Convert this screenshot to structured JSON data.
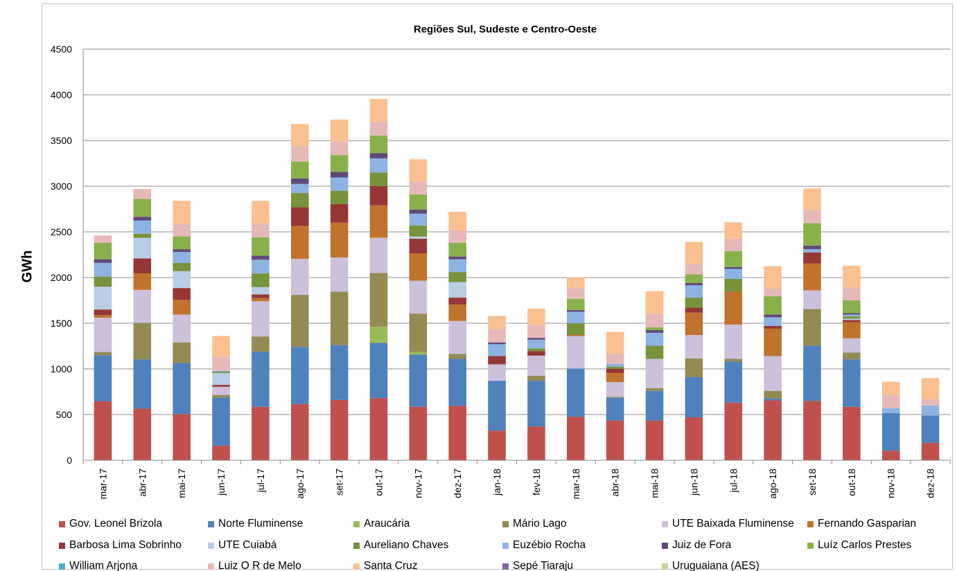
{
  "chart_data": {
    "type": "bar",
    "stacked": true,
    "title": "Regiões Sul, Sudeste e Centro-Oeste",
    "xlabel": "",
    "ylabel": "GWh",
    "ylim": [
      0,
      4500
    ],
    "yticks": [
      "0",
      "500",
      "1000",
      "1500",
      "2000",
      "2500",
      "3000",
      "3500",
      "4000",
      "4500"
    ],
    "grid": true,
    "legend_position": "bottom",
    "categories": [
      "mar-17",
      "abr-17",
      "mai-17",
      "jun-17",
      "jul-17",
      "ago-17",
      "set-17",
      "out-17",
      "nov-17",
      "dez-17",
      "jan-18",
      "fev-18",
      "mar-18",
      "abr-18",
      "mai-18",
      "jun-18",
      "jul-18",
      "ago-18",
      "set-18",
      "out-18",
      "nov-18",
      "dez-18"
    ],
    "series": [
      {
        "name": "Gov. Leonel Brizola",
        "color": "#c0504d",
        "values": [
          645,
          565,
          505,
          160,
          585,
          615,
          660,
          680,
          585,
          595,
          325,
          370,
          475,
          435,
          435,
          470,
          630,
          655,
          650,
          585,
          105,
          190
        ]
      },
      {
        "name": "Norte Fluminense",
        "color": "#4f81bd",
        "values": [
          505,
          540,
          560,
          525,
          605,
          625,
          600,
          605,
          570,
          515,
          545,
          500,
          530,
          250,
          325,
          440,
          450,
          20,
          605,
          520,
          410,
          300
        ]
      },
      {
        "name": "Araucária",
        "color": "#9bbb59",
        "values": [
          0,
          0,
          0,
          0,
          0,
          0,
          0,
          175,
          30,
          0,
          0,
          0,
          0,
          0,
          0,
          0,
          0,
          0,
          0,
          0,
          0,
          0
        ]
      },
      {
        "name": "Mário Lago",
        "color": "#948a54",
        "values": [
          35,
          400,
          225,
          30,
          165,
          570,
          585,
          590,
          420,
          55,
          0,
          55,
          0,
          10,
          30,
          205,
          30,
          85,
          400,
          75,
          0,
          0
        ]
      },
      {
        "name": "UTE Baixada Fluminense",
        "color": "#ccc0da",
        "values": [
          375,
          360,
          305,
          90,
          385,
          395,
          375,
          385,
          360,
          360,
          180,
          220,
          355,
          160,
          320,
          255,
          375,
          380,
          205,
          155,
          0,
          0
        ]
      },
      {
        "name": "Fernando Gasparian",
        "color": "#c0732d",
        "values": [
          30,
          180,
          160,
          0,
          35,
          360,
          380,
          355,
          300,
          180,
          0,
          0,
          15,
          100,
          0,
          245,
          360,
          300,
          295,
          175,
          0,
          0
        ]
      },
      {
        "name": "Barbosa Lima Sobrinho",
        "color": "#953735",
        "values": [
          60,
          165,
          130,
          20,
          40,
          205,
          205,
          210,
          160,
          75,
          90,
          50,
          0,
          45,
          0,
          55,
          0,
          30,
          120,
          25,
          0,
          0
        ]
      },
      {
        "name": "UTE Cuiabá",
        "color": "#b9cde5",
        "values": [
          250,
          225,
          185,
          130,
          80,
          0,
          0,
          0,
          25,
          170,
          0,
          0,
          0,
          0,
          0,
          0,
          0,
          0,
          0,
          15,
          0,
          0
        ]
      },
      {
        "name": "Aureliano Chaves",
        "color": "#77933c",
        "values": [
          110,
          45,
          90,
          15,
          150,
          155,
          145,
          150,
          120,
          110,
          0,
          30,
          125,
          25,
          145,
          110,
          140,
          0,
          0,
          25,
          0,
          0
        ]
      },
      {
        "name": "Euzébio Rocha",
        "color": "#8db3e2",
        "values": [
          150,
          145,
          120,
          10,
          150,
          100,
          145,
          155,
          130,
          140,
          130,
          95,
          125,
          30,
          140,
          135,
          110,
          95,
          35,
          20,
          55,
          110
        ]
      },
      {
        "name": "Juiz de Fora",
        "color": "#604a7b",
        "values": [
          40,
          40,
          30,
          0,
          45,
          60,
          60,
          55,
          45,
          30,
          20,
          20,
          20,
          0,
          30,
          25,
          20,
          30,
          40,
          15,
          0,
          0
        ]
      },
      {
        "name": "Luíz Carlos Prestes",
        "color": "#8ab04c",
        "values": [
          180,
          195,
          140,
          0,
          200,
          185,
          185,
          195,
          165,
          150,
          0,
          0,
          120,
          0,
          30,
          95,
          175,
          200,
          245,
          140,
          0,
          0
        ]
      },
      {
        "name": "William Arjona",
        "color": "#4bacc6",
        "values": [
          0,
          0,
          0,
          0,
          0,
          0,
          0,
          0,
          0,
          0,
          0,
          0,
          0,
          0,
          0,
          0,
          0,
          0,
          0,
          0,
          0,
          0
        ]
      },
      {
        "name": "Luiz O R de Melo",
        "color": "#e6b9b8",
        "values": [
          80,
          110,
          135,
          150,
          155,
          165,
          150,
          150,
          140,
          140,
          145,
          140,
          120,
          110,
          145,
          115,
          135,
          80,
          145,
          140,
          145,
          70
        ]
      },
      {
        "name": "Santa Cruz",
        "color": "#fac090",
        "values": [
          0,
          0,
          255,
          230,
          245,
          245,
          240,
          250,
          245,
          200,
          145,
          180,
          120,
          240,
          250,
          240,
          180,
          250,
          235,
          240,
          145,
          230
        ]
      },
      {
        "name": "Sepé Tiaraju",
        "color": "#8064a2",
        "values": [
          0,
          0,
          0,
          0,
          0,
          0,
          0,
          0,
          0,
          0,
          0,
          0,
          0,
          0,
          0,
          0,
          0,
          0,
          0,
          0,
          0,
          0
        ]
      },
      {
        "name": "Uruguaiana (AES)",
        "color": "#c4d79b",
        "values": [
          0,
          0,
          0,
          0,
          0,
          0,
          0,
          0,
          0,
          0,
          0,
          0,
          0,
          0,
          0,
          0,
          0,
          0,
          0,
          0,
          0,
          0
        ]
      }
    ]
  }
}
